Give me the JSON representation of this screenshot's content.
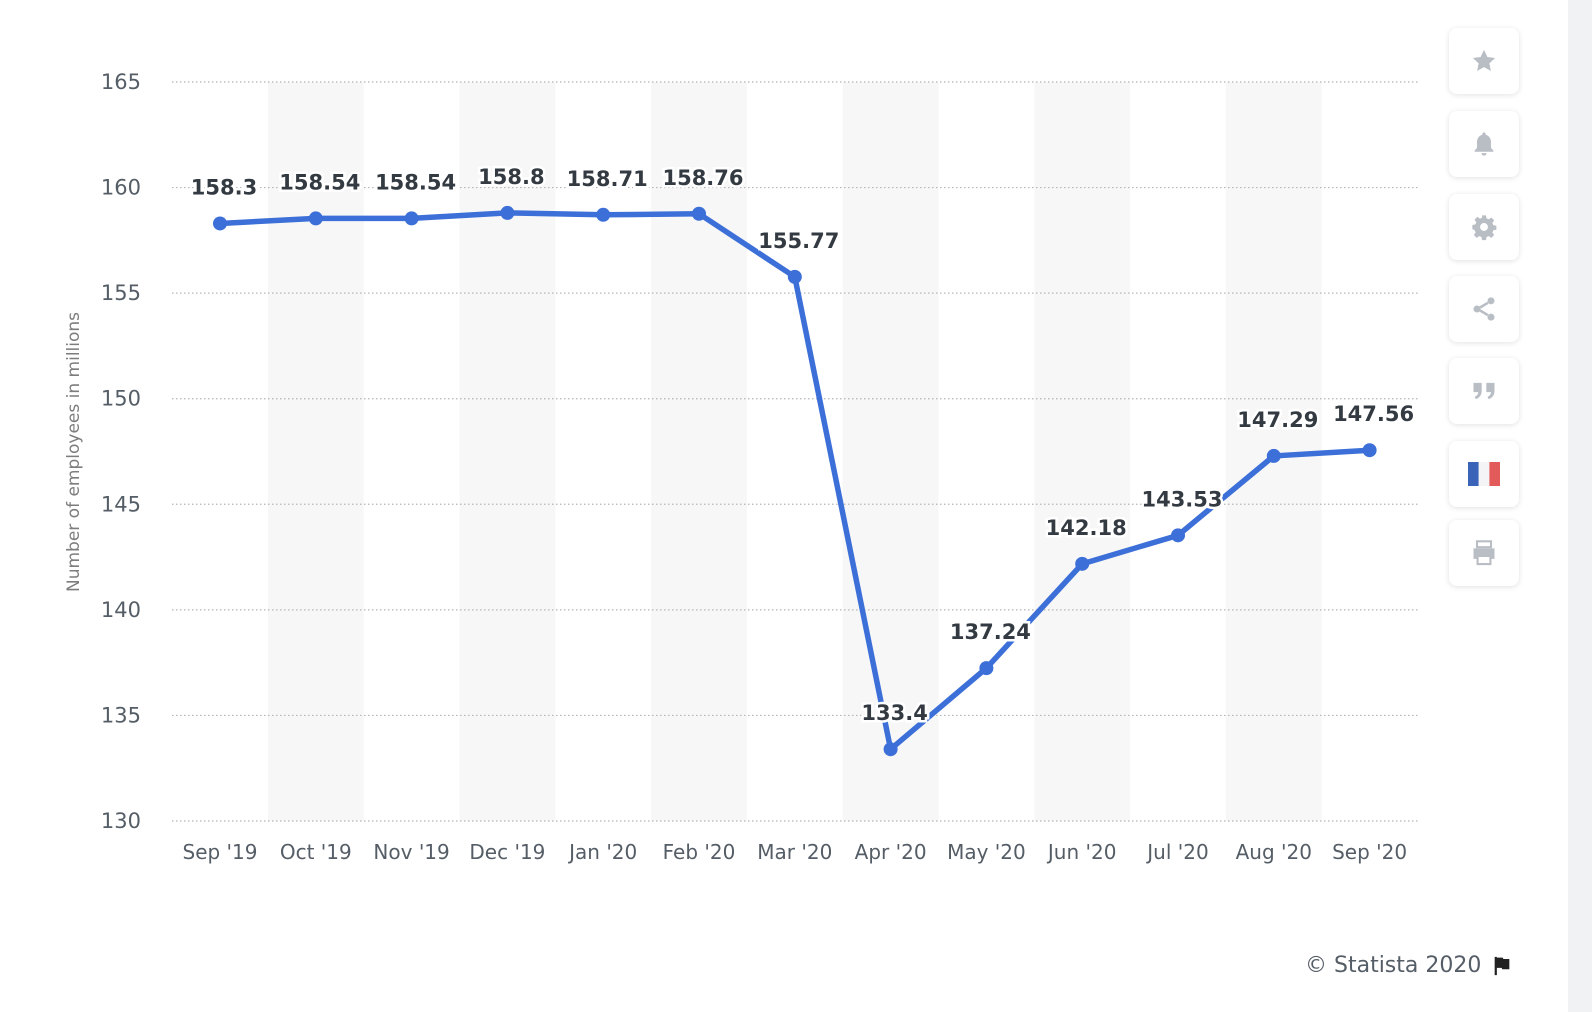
{
  "chart_data": {
    "type": "line",
    "categories": [
      "Sep '19",
      "Oct '19",
      "Nov '19",
      "Dec '19",
      "Jan '20",
      "Feb '20",
      "Mar '20",
      "Apr '20",
      "May '20",
      "Jun '20",
      "Jul '20",
      "Aug '20",
      "Sep '20"
    ],
    "series": [
      {
        "values": [
          158.3,
          158.54,
          158.54,
          158.8,
          158.71,
          158.76,
          155.77,
          133.4,
          137.24,
          142.18,
          143.53,
          147.29,
          147.56
        ],
        "labels": [
          "158.3",
          "158.54",
          "158.54",
          "158.8",
          "158.71",
          "158.76",
          "155.77",
          "133.4",
          "137.24",
          "142.18",
          "143.53",
          "147.29",
          "147.56"
        ],
        "color": "#3c6fd8"
      }
    ],
    "title": "",
    "xlabel": "",
    "ylabel": "Number of employees in millions",
    "ylim": [
      130,
      165
    ],
    "yticks": [
      "130",
      "135",
      "140",
      "145",
      "150",
      "155",
      "160",
      "165"
    ],
    "grid": "dotted horizontal",
    "legend": "none",
    "band_color": "#f7f7f8"
  },
  "toolbar": {
    "buttons": [
      {
        "name": "favorite-button",
        "icon": "star-icon"
      },
      {
        "name": "notification-button",
        "icon": "bell-icon"
      },
      {
        "name": "settings-button",
        "icon": "gear-icon"
      },
      {
        "name": "share-button",
        "icon": "share-icon"
      },
      {
        "name": "citation-button",
        "icon": "quote-icon"
      },
      {
        "name": "language-button",
        "icon": "french-flag-icon"
      },
      {
        "name": "print-button",
        "icon": "printer-icon"
      }
    ]
  },
  "footer": {
    "copyright": "© Statista 2020",
    "flag_icon": "flag-icon"
  }
}
